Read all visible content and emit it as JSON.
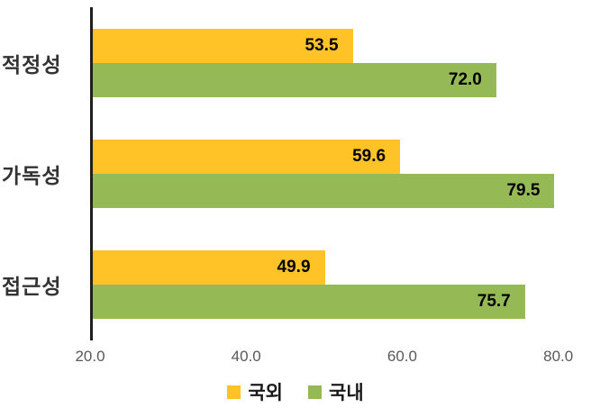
{
  "chart_data": {
    "type": "bar",
    "orientation": "horizontal",
    "title": "",
    "xlabel": "",
    "ylabel": "",
    "categories": [
      "적정성",
      "가독성",
      "접근성"
    ],
    "series": [
      {
        "name": "국외",
        "color": "#FFC328",
        "values": [
          53.5,
          59.6,
          49.9
        ]
      },
      {
        "name": "국내",
        "color": "#95BA55",
        "values": [
          72.0,
          79.5,
          75.7
        ]
      }
    ],
    "xlim": [
      20.0,
      82.0
    ],
    "xticks": [
      20.0,
      40.0,
      60.0,
      80.0
    ],
    "xtick_labels": [
      "20.0",
      "40.0",
      "60.0",
      "80.0"
    ],
    "grid": false,
    "legend_position": "bottom",
    "value_label_decimals": 1,
    "axis_line_color": "#1f1f1f",
    "tick_label_color": "#595959",
    "category_label_color": "#333333",
    "value_label_color": "#000000"
  }
}
